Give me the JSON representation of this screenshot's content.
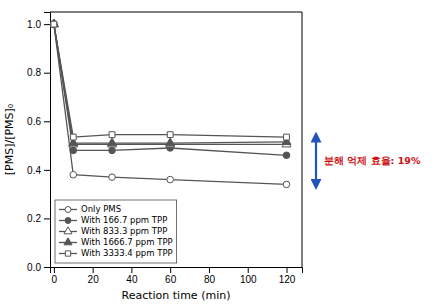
{
  "chart_data": {
    "type": "line",
    "x": [
      0,
      10,
      30,
      60,
      120
    ],
    "series": [
      {
        "name": "Only PMS",
        "color": "#555555",
        "marker": "circle-open",
        "values": [
          1.0,
          0.38,
          0.37,
          0.36,
          0.34
        ]
      },
      {
        "name": "With 166.7 ppm TPP",
        "color": "#555555",
        "marker": "circle",
        "values": [
          1.0,
          0.48,
          0.48,
          0.49,
          0.46
        ]
      },
      {
        "name": "With 833.3 ppm TPP",
        "color": "#555555",
        "marker": "triangle-open",
        "values": [
          1.0,
          0.505,
          0.505,
          0.505,
          0.505
        ]
      },
      {
        "name": "With 1666.7 ppm TPP",
        "color": "#555555",
        "marker": "triangle",
        "values": [
          1.0,
          0.51,
          0.51,
          0.51,
          0.515
        ]
      },
      {
        "name": "With 3333.4 ppm TPP",
        "color": "#555555",
        "marker": "square-open",
        "values": [
          1.0,
          0.535,
          0.545,
          0.545,
          0.535
        ]
      }
    ],
    "xlabel": "Reaction time (min)",
    "ylabel": "[PMS]/[PMS]₀",
    "xlim": [
      -2,
      128
    ],
    "ylim": [
      0.0,
      1.05
    ],
    "xticks": [
      0,
      20,
      40,
      60,
      80,
      100,
      120
    ],
    "yticks": [
      {
        "value": 0.0,
        "label": "0.0"
      },
      0.2,
      0.4,
      0.6,
      0.8,
      {
        "value": 1.0,
        "label": "1.0"
      }
    ],
    "legend": "lower left",
    "annotation": {
      "text": "분해 억제 효율: 19%",
      "color": "#cc1111",
      "arrow": {
        "from": 0.34,
        "to": 0.535,
        "color": "#2255bb"
      }
    }
  }
}
